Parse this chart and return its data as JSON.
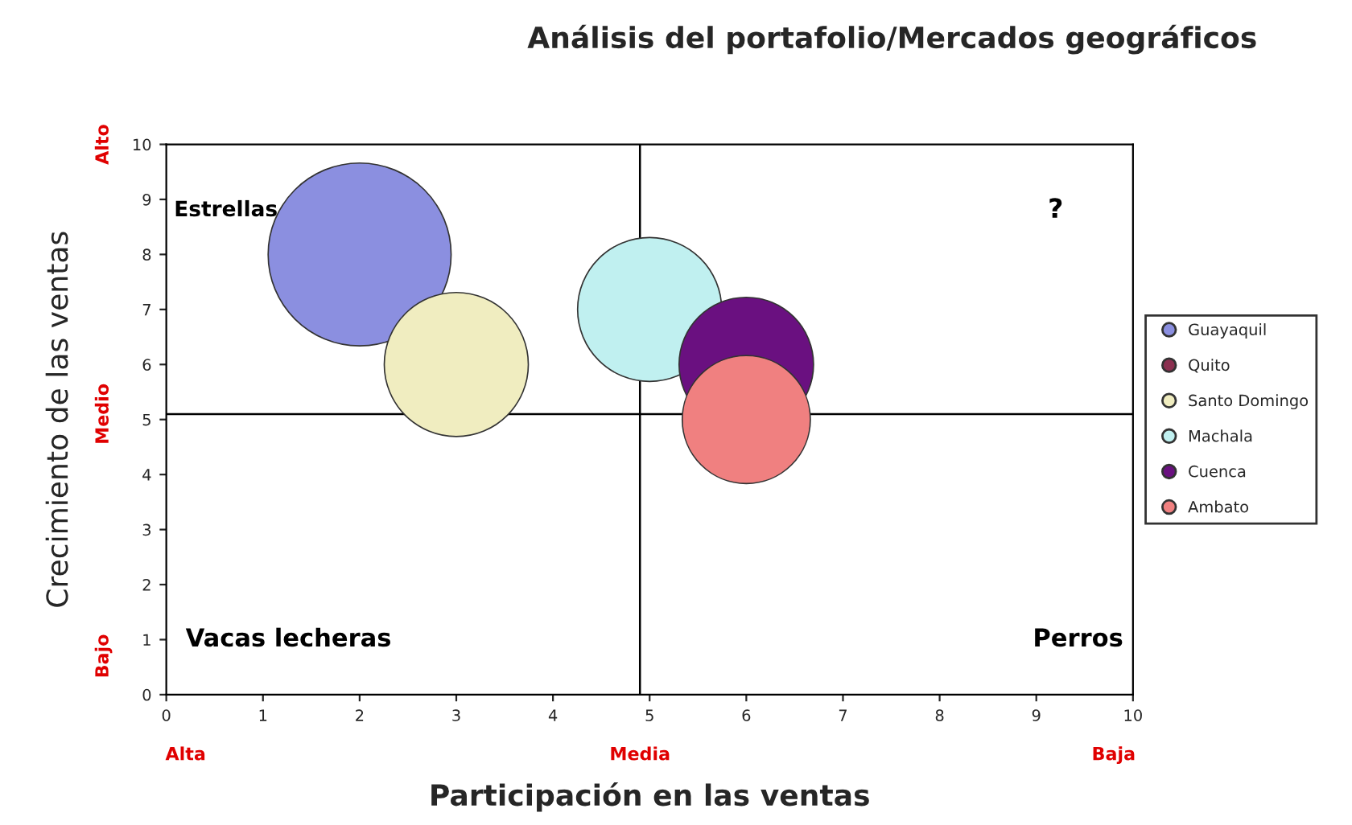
{
  "chart_data": {
    "type": "bubble",
    "title": "Análisis del portafolio/Mercados geográficos",
    "xlabel": "Participación en las ventas",
    "ylabel": "Crecimiento de las ventas",
    "series": [
      {
        "name": "Guayaquil",
        "color": "#8b8fe0",
        "x": [
          2
        ],
        "values": [
          8
        ],
        "sizes": [
          1
        ]
      },
      {
        "name": "Quito",
        "color": "#8b3050",
        "x": [
          null
        ],
        "values": [
          null
        ],
        "sizes": [
          null
        ]
      },
      {
        "name": "Santo Domingo",
        "color": "#f0edc0",
        "x": [
          3
        ],
        "values": [
          6
        ],
        "sizes": [
          0.62
        ]
      },
      {
        "name": "Machala",
        "color": "#c0f0f0",
        "x": [
          5
        ],
        "values": [
          7
        ],
        "sizes": [
          0.62
        ]
      },
      {
        "name": "Cuenca",
        "color": "#6a1080",
        "x": [
          6
        ],
        "values": [
          6
        ],
        "sizes": [
          0.54
        ]
      },
      {
        "name": "Ambato",
        "color": "#f08080",
        "x": [
          6
        ],
        "values": [
          5
        ],
        "sizes": [
          0.49
        ]
      }
    ],
    "xlim": [
      0,
      10
    ],
    "ylim": [
      0,
      10
    ],
    "xticks": [
      0,
      1,
      2,
      3,
      4,
      5,
      6,
      7,
      8,
      9,
      10
    ],
    "yticks": [
      0,
      1,
      2,
      3,
      4,
      5,
      6,
      7,
      8,
      9,
      10
    ],
    "ref_lines": [
      {
        "axis": "x",
        "value": 4.9,
        "color": "#000000"
      },
      {
        "axis": "y",
        "value": 5.1,
        "color": "#000000"
      }
    ],
    "annotations": [
      "Estrellas",
      "?",
      "Vacas lecheras",
      "Perros",
      "Alto",
      "Medio",
      "Bajo",
      "Alta",
      "Media",
      "Baja"
    ],
    "legend": "right",
    "grid": false
  }
}
